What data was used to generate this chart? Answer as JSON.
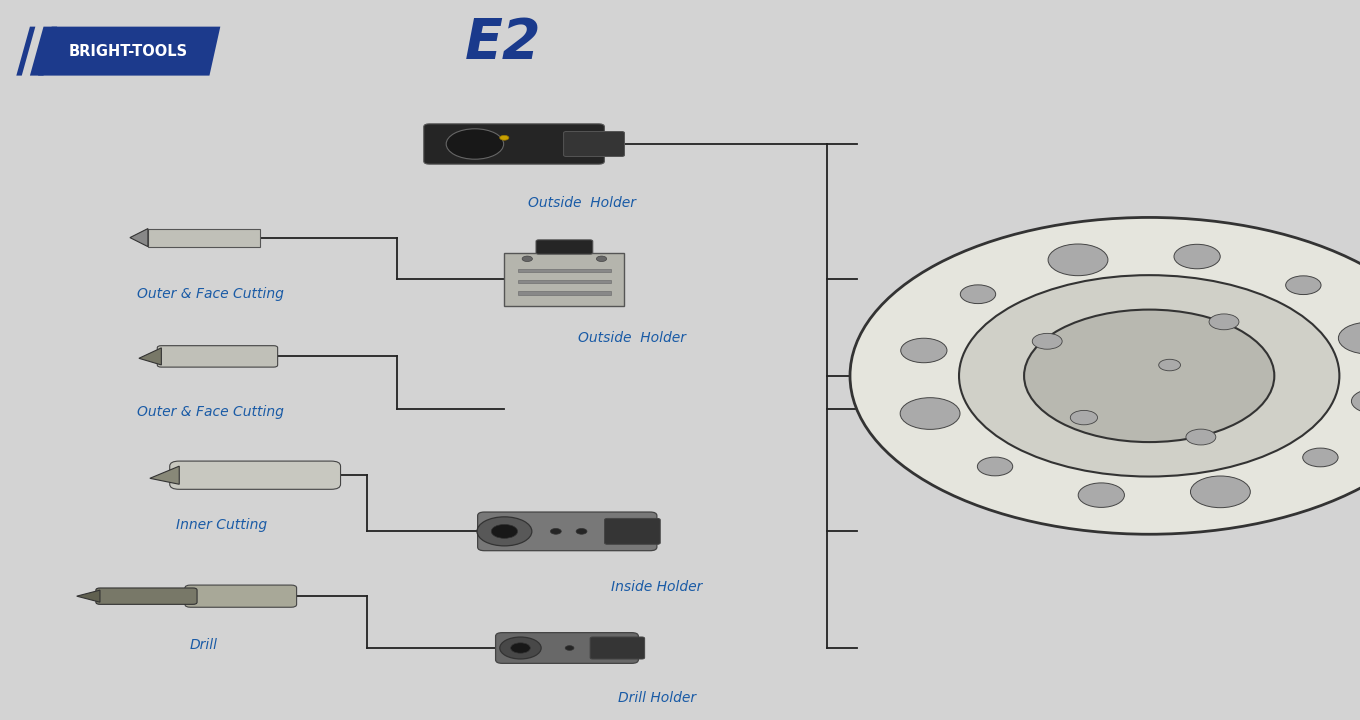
{
  "bg_color": "#d3d3d3",
  "title_color": "#1a3a8c",
  "label_color": "#1a5ba6",
  "line_color": "#222222",
  "logo_text": "BRIGHT-TOOLS",
  "logo_bg": "#1c3a8c",
  "main_label": "E2",
  "tool_labels_left": [
    "Outer & Face Cutting",
    "Outer & Face Cutting",
    "Inner Cutting",
    "Drill"
  ],
  "tool_labels_center": [
    "Outside  Holder",
    "Outside  Holder",
    "Inside Holder",
    "Drill Holder"
  ]
}
